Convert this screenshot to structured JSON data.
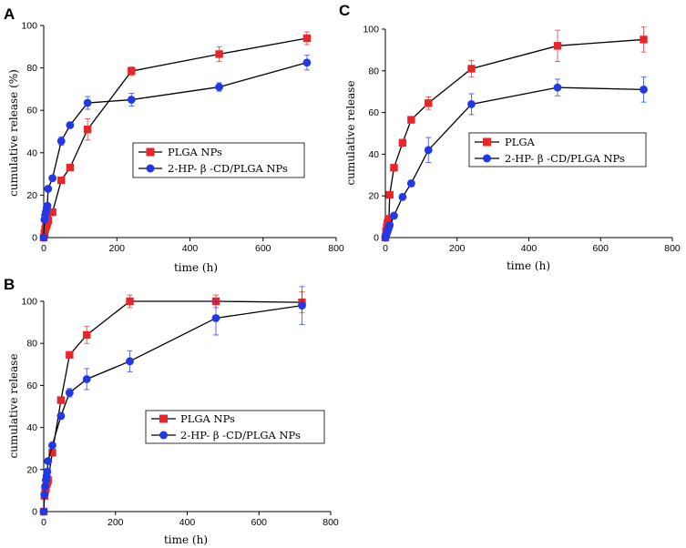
{
  "chart_data": [
    {
      "panel": "A",
      "type": "line",
      "xlabel": "time (h)",
      "ylabel": "cumulative release (%)",
      "xlim": [
        0,
        800
      ],
      "ylim": [
        0,
        100
      ],
      "xticks": [
        0,
        200,
        400,
        600,
        800
      ],
      "yticks": [
        0,
        20,
        40,
        60,
        80,
        100
      ],
      "legend_position": "center-right",
      "series": [
        {
          "name": "PLGA NPs",
          "color": "#e8262a",
          "marker": "square",
          "x": [
            0,
            2,
            4,
            6,
            8,
            10,
            12,
            24,
            48,
            72,
            120,
            240,
            480,
            720
          ],
          "y": [
            0,
            2,
            4,
            5,
            6,
            7,
            8,
            12,
            27,
            33,
            51,
            78.5,
            86.5,
            94
          ],
          "err": [
            0,
            0.5,
            0.5,
            0.5,
            0.5,
            0.5,
            0.5,
            1,
            1.5,
            1.5,
            5,
            2,
            3.5,
            3
          ]
        },
        {
          "name": "2-HP- β -CD/PLGA NPs",
          "color": "#2238e6",
          "marker": "circle",
          "x": [
            0,
            2,
            4,
            6,
            8,
            10,
            12,
            24,
            48,
            72,
            120,
            240,
            480,
            720
          ],
          "y": [
            0,
            8.5,
            10.5,
            12,
            14,
            15,
            23,
            28,
            45.5,
            53,
            63.5,
            65,
            71,
            82.5
          ],
          "err": [
            0,
            0.5,
            0.5,
            0.5,
            0.5,
            1,
            1,
            1,
            2,
            1,
            3,
            3,
            2,
            3.5
          ]
        }
      ]
    },
    {
      "panel": "B",
      "type": "line",
      "xlabel": "time (h)",
      "ylabel": "cumulative release",
      "xlim": [
        0,
        800
      ],
      "ylim": [
        0,
        100
      ],
      "xticks": [
        0,
        200,
        400,
        600,
        800
      ],
      "yticks": [
        0,
        20,
        40,
        60,
        80,
        100
      ],
      "legend_position": "center-right",
      "series": [
        {
          "name": "PLGA NPs",
          "color": "#e8262a",
          "marker": "square",
          "x": [
            0,
            2,
            4,
            6,
            8,
            10,
            12,
            24,
            48,
            72,
            120,
            240,
            480,
            720
          ],
          "y": [
            0,
            7.5,
            10,
            11,
            13,
            14,
            15,
            28,
            53,
            74.5,
            84,
            100,
            100,
            99.5
          ],
          "err": [
            0,
            0.5,
            0.5,
            0.5,
            0.5,
            0.5,
            0.5,
            1,
            1.5,
            1.5,
            4,
            3,
            3,
            5
          ]
        },
        {
          "name": "2-HP- β -CD/PLGA NPs",
          "color": "#2238e6",
          "marker": "circle",
          "x": [
            0,
            2,
            4,
            6,
            8,
            10,
            12,
            24,
            48,
            72,
            120,
            240,
            480,
            720
          ],
          "y": [
            0,
            8,
            12,
            15,
            17,
            19,
            24,
            31.5,
            45.5,
            56.5,
            63,
            71.5,
            92,
            98
          ],
          "err": [
            0,
            0.5,
            0.5,
            0.5,
            0.5,
            0.5,
            1,
            1,
            1.5,
            2,
            5,
            5,
            8,
            9
          ]
        }
      ]
    },
    {
      "panel": "C",
      "type": "line",
      "xlabel": "time (h)",
      "ylabel": "cumulative release",
      "xlim": [
        0,
        800
      ],
      "ylim": [
        0,
        100
      ],
      "xticks": [
        0,
        200,
        400,
        600,
        800
      ],
      "yticks": [
        0,
        20,
        40,
        60,
        80,
        100
      ],
      "legend_position": "center-right",
      "series": [
        {
          "name": "PLGA",
          "color": "#e8262a",
          "marker": "square",
          "x": [
            0,
            2,
            4,
            6,
            8,
            10,
            12,
            24,
            48,
            72,
            120,
            240,
            480,
            720
          ],
          "y": [
            0,
            3,
            5,
            7,
            8,
            9,
            20.5,
            33.5,
            45.5,
            56.5,
            64.5,
            81,
            92,
            95
          ],
          "err": [
            0,
            0.5,
            0.5,
            0.5,
            0.5,
            0.5,
            1,
            1,
            1.5,
            1.5,
            3,
            4,
            7.5,
            6
          ]
        },
        {
          "name": "2-HP- β -CD/PLGA NPs",
          "color": "#2238e6",
          "marker": "circle",
          "x": [
            0,
            2,
            4,
            6,
            8,
            10,
            12,
            24,
            48,
            72,
            120,
            240,
            480,
            720
          ],
          "y": [
            0,
            1,
            2,
            3,
            4,
            5,
            6,
            10.5,
            19.5,
            26,
            42,
            64,
            72,
            71
          ],
          "err": [
            0,
            0.5,
            0.5,
            0.5,
            0.5,
            0.5,
            0.5,
            1,
            1,
            1.5,
            6,
            5,
            4,
            6
          ]
        }
      ]
    }
  ]
}
